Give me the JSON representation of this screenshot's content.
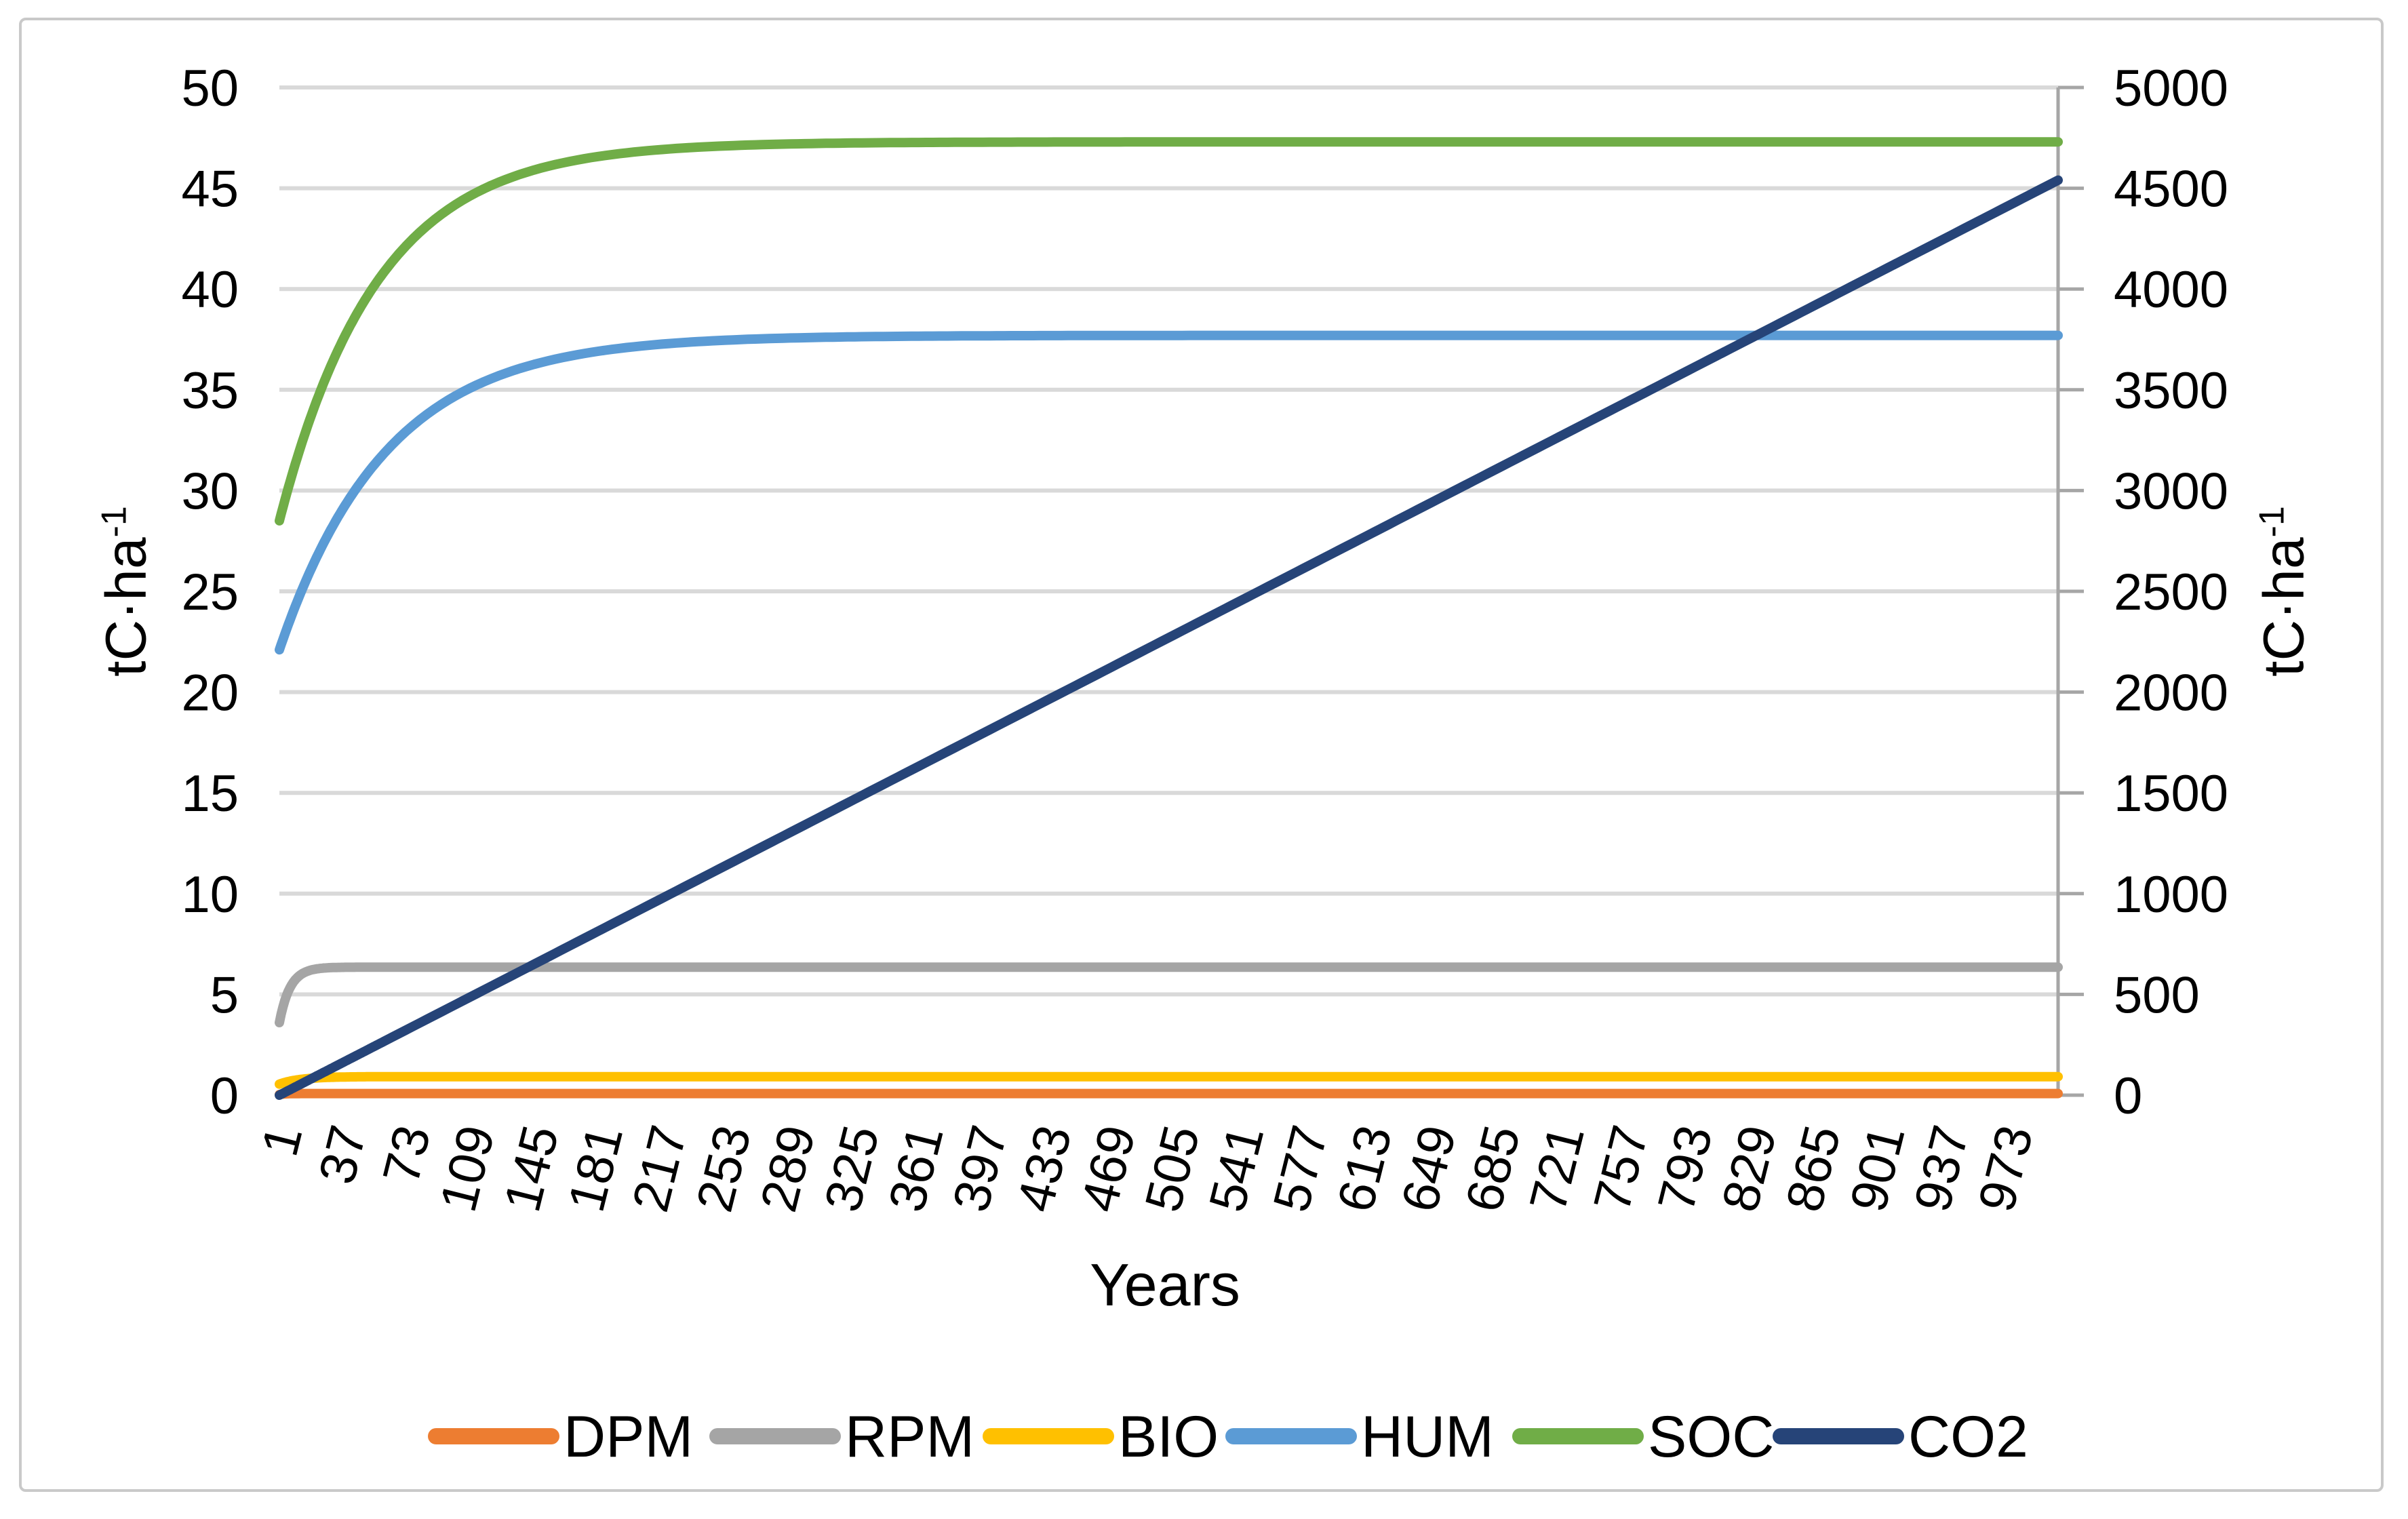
{
  "figure": {
    "background": "#FFFFFF",
    "border_color": "#C9C9C9"
  },
  "chart_data": {
    "type": "line",
    "title": "",
    "x_axis": {
      "label": "Years",
      "range": [
        1,
        1000
      ],
      "tick_labels": [
        1,
        37,
        73,
        109,
        145,
        181,
        217,
        253,
        289,
        325,
        361,
        397,
        433,
        469,
        505,
        541,
        577,
        613,
        649,
        685,
        721,
        757,
        793,
        829,
        865,
        901,
        937,
        973
      ],
      "tick_rotation_deg": -76
    },
    "y_axis_left": {
      "label": "tC·ha⁻¹",
      "label_base": "tC·ha",
      "label_sup": "-1",
      "ticks": [
        0,
        5,
        10,
        15,
        20,
        25,
        30,
        35,
        40,
        45,
        50
      ],
      "range": [
        0,
        50
      ]
    },
    "y_axis_right": {
      "label": "tC·ha⁻¹",
      "label_base": "tC·ha",
      "label_sup": "-1",
      "ticks": [
        0,
        500,
        1000,
        1500,
        2000,
        2500,
        3000,
        3500,
        4000,
        4500,
        5000
      ],
      "range": [
        0,
        5000
      ]
    },
    "grid": {
      "horizontal": true,
      "color": "#D9D9D9"
    },
    "axis_line_color": "#A6A6A6",
    "bottom_axis_color": "#BFBFBF",
    "legend": {
      "position": "bottom"
    },
    "series": [
      {
        "name": "DPM",
        "color": "#ED7D31",
        "axis": "left",
        "shape": "saturating",
        "start": 0.03,
        "plateau": 0.08,
        "tau_years": 3,
        "summary": "flat just above 0 tC/ha for all years"
      },
      {
        "name": "RPM",
        "color": "#A5A5A5",
        "axis": "left",
        "shape": "saturating",
        "start": 3.6,
        "plateau": 6.35,
        "tau_years": 6,
        "summary": "rises quickly from ~3.6 to plateau ~6.3 tC/ha within ~30 years"
      },
      {
        "name": "BIO",
        "color": "#FFC000",
        "axis": "left",
        "shape": "saturating",
        "start": 0.55,
        "plateau": 0.92,
        "tau_years": 12,
        "summary": "rises from ~0.5 to ~0.9 tC/ha"
      },
      {
        "name": "HUM",
        "color": "#5B9BD5",
        "axis": "left",
        "shape": "saturating",
        "start": 22.1,
        "plateau": 37.7,
        "tau_years": 60,
        "summary": "rises from ~22 to plateau ~37.7 tC/ha by ~year 300"
      },
      {
        "name": "SOC",
        "color": "#70AD47",
        "axis": "left",
        "shape": "saturating",
        "start": 28.5,
        "plateau": 47.3,
        "tau_years": 55,
        "summary": "rises from ~28.5 to plateau ~47.3 tC/ha by ~year 300"
      },
      {
        "name": "CO2",
        "color": "#264478",
        "axis": "right",
        "shape": "linear",
        "start": 0,
        "end": 4540,
        "summary": "linear increase from 0 to ~4540 tC/ha (right axis) at year 1000"
      }
    ]
  }
}
